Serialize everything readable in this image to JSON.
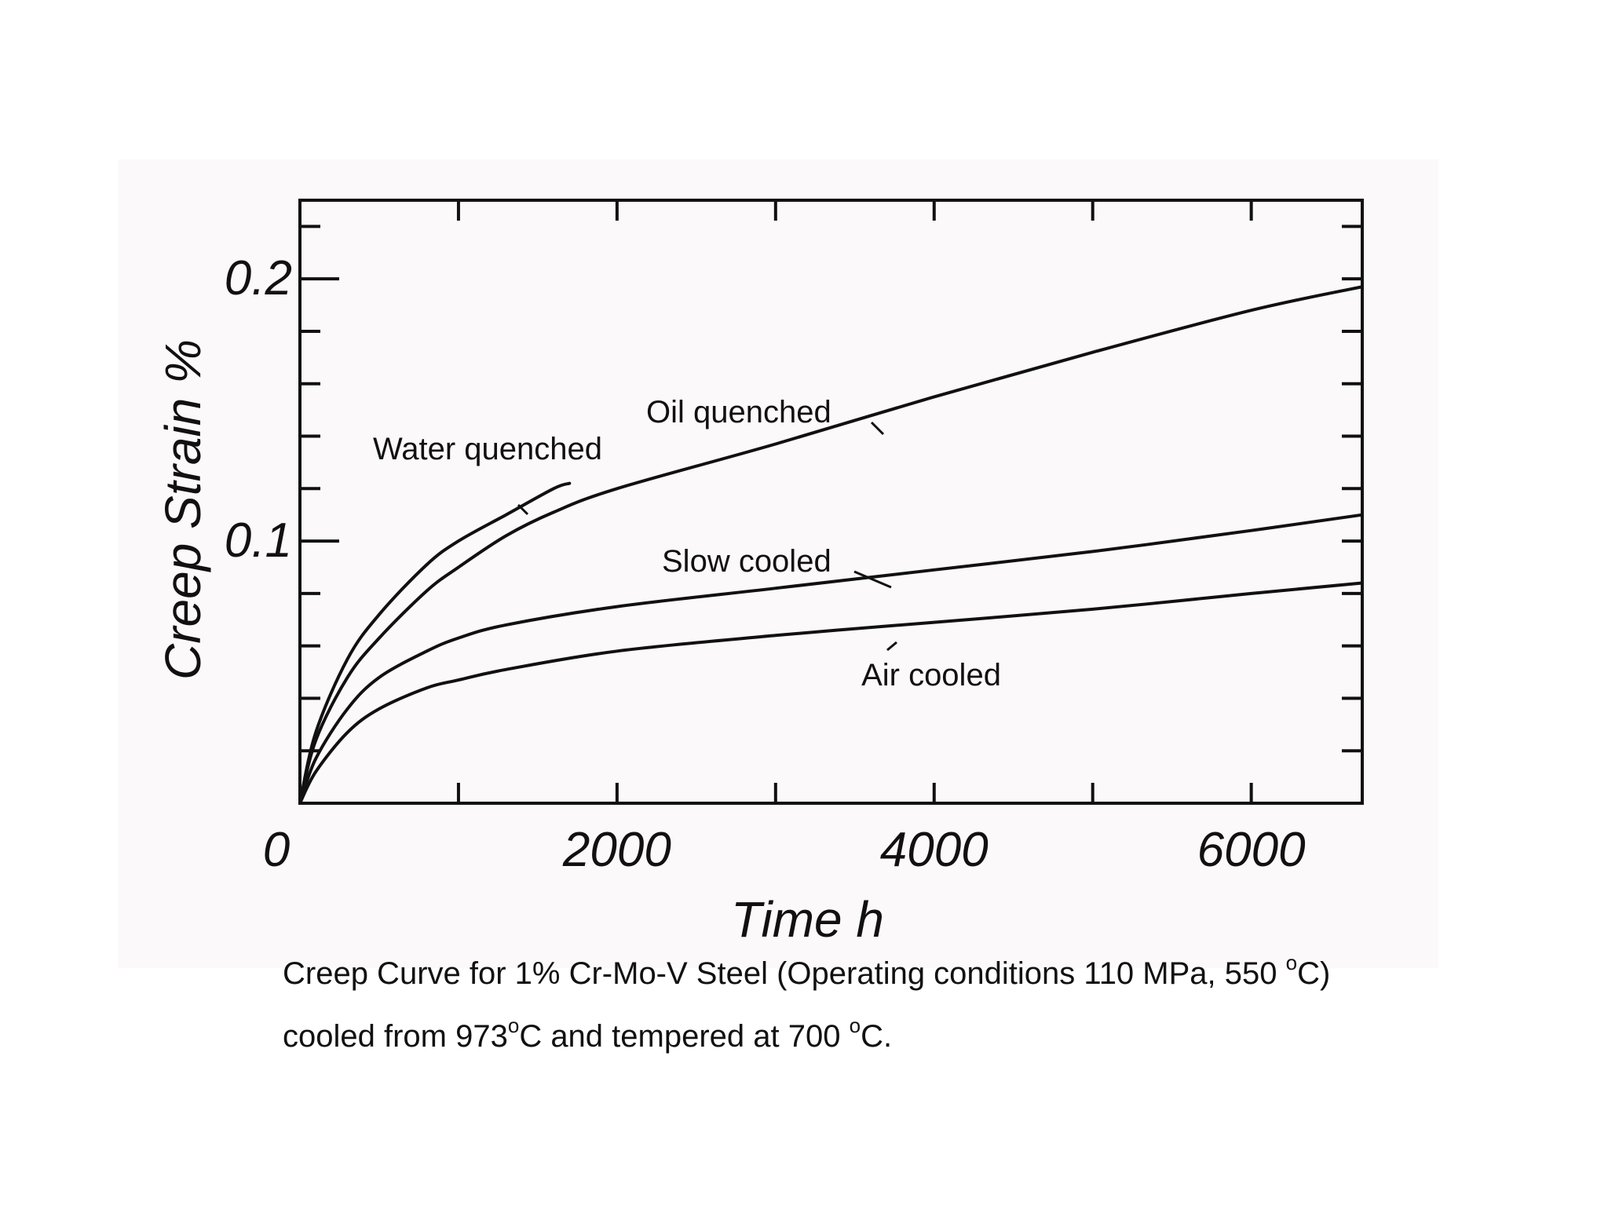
{
  "chart_data": {
    "type": "line",
    "title": "",
    "xlabel": "Time h",
    "ylabel": "Creep Strain %",
    "xlim": [
      0,
      6700
    ],
    "ylim": [
      0,
      0.23
    ],
    "x_ticks": [
      0,
      2000,
      4000,
      6000
    ],
    "x_tick_labels": [
      "0",
      "2000",
      "4000",
      "6000"
    ],
    "y_ticks": [
      0.1,
      0.2
    ],
    "y_tick_labels": [
      "0.1",
      "0.2"
    ],
    "x_minor_ticks": [
      1000,
      2000,
      3000,
      4000,
      5000,
      6000
    ],
    "y_minor_ticks": [
      0.02,
      0.04,
      0.06,
      0.08,
      0.1,
      0.12,
      0.14,
      0.16,
      0.18,
      0.2,
      0.22
    ],
    "grid": false,
    "series": [
      {
        "name": "Water quenched",
        "x": [
          0,
          100,
          300,
          500,
          800,
          1000,
          1300,
          1600,
          1700
        ],
        "y": [
          0,
          0.027,
          0.055,
          0.072,
          0.091,
          0.1,
          0.11,
          0.12,
          0.122
        ]
      },
      {
        "name": "Oil quenched",
        "x": [
          0,
          100,
          300,
          500,
          800,
          1000,
          1300,
          1600,
          2000,
          3000,
          4000,
          5000,
          6000,
          6700
        ],
        "y": [
          0,
          0.024,
          0.048,
          0.063,
          0.081,
          0.09,
          0.102,
          0.111,
          0.12,
          0.137,
          0.155,
          0.172,
          0.188,
          0.197
        ]
      },
      {
        "name": "Slow cooled",
        "x": [
          0,
          100,
          300,
          500,
          800,
          1000,
          1300,
          2000,
          3000,
          4000,
          5000,
          6000,
          6700
        ],
        "y": [
          0,
          0.017,
          0.036,
          0.048,
          0.058,
          0.063,
          0.068,
          0.075,
          0.082,
          0.089,
          0.096,
          0.104,
          0.11
        ]
      },
      {
        "name": "Air cooled",
        "x": [
          0,
          100,
          300,
          500,
          800,
          1000,
          1300,
          2000,
          3000,
          4000,
          5000,
          6000,
          6700
        ],
        "y": [
          0,
          0.012,
          0.027,
          0.036,
          0.044,
          0.047,
          0.051,
          0.058,
          0.064,
          0.069,
          0.074,
          0.08,
          0.084
        ]
      }
    ],
    "annotations": [
      {
        "text": "Water quenched",
        "series": "Water quenched"
      },
      {
        "text": "Oil quenched",
        "series": "Oil quenched"
      },
      {
        "text": "Slow cooled",
        "series": "Slow cooled"
      },
      {
        "text": "Air cooled",
        "series": "Air cooled"
      }
    ]
  },
  "caption": {
    "line1_part1": "Creep Curve for 1% Cr-Mo-V Steel (Operating conditions 110 MPa, 550 ",
    "line1_sup": "o",
    "line1_part2": "C)",
    "line2_part1": "cooled from 973",
    "line2_sup1": "o",
    "line2_part2": "C and tempered at 700 ",
    "line2_sup2": "o",
    "line2_part3": "C."
  },
  "colors": {
    "ink": "#111111",
    "panel": "#fcf9fa",
    "page": "#ffffff"
  }
}
